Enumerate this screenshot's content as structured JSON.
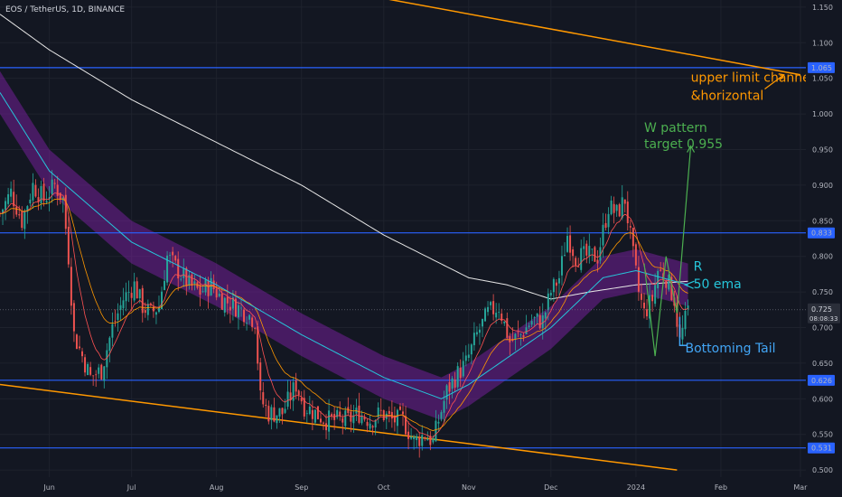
{
  "chart_data": {
    "type": "candlestick",
    "title": "EOS / TetherUS, 1D, BINANCE",
    "ylim": [
      0.49,
      1.16
    ],
    "y_ticks": [
      0.5,
      0.55,
      0.6,
      0.65,
      0.7,
      0.75,
      0.8,
      0.85,
      0.9,
      0.95,
      1.0,
      1.05,
      1.1,
      1.15
    ],
    "y_tick_labels": [
      "0.500",
      "0.550",
      "0.600",
      "0.650",
      "0.700",
      "0.750",
      "0.800",
      "0.850",
      "0.900",
      "0.950",
      "1.000",
      "1.050",
      "1.100",
      "1.150"
    ],
    "x_range": [
      "2023-05-14",
      "2024-03-03"
    ],
    "x_ticks": [
      {
        "date": "2023-06-01",
        "label": "Jun"
      },
      {
        "date": "2023-07-01",
        "label": "Jul"
      },
      {
        "date": "2023-08-01",
        "label": "Aug"
      },
      {
        "date": "2023-09-01",
        "label": "Sep"
      },
      {
        "date": "2023-10-01",
        "label": "Oct"
      },
      {
        "date": "2023-11-01",
        "label": "Nov"
      },
      {
        "date": "2023-12-01",
        "label": "Dec"
      },
      {
        "date": "2024-01-01",
        "label": "2024"
      },
      {
        "date": "2024-02-01",
        "label": "Feb"
      },
      {
        "date": "2024-03-01",
        "label": "Mar"
      }
    ],
    "close_anchors": [
      [
        "2023-05-14",
        0.86
      ],
      [
        "2023-05-18",
        0.89
      ],
      [
        "2023-05-22",
        0.85
      ],
      [
        "2023-05-26",
        0.9
      ],
      [
        "2023-05-30",
        0.88
      ],
      [
        "2023-06-03",
        0.9
      ],
      [
        "2023-06-06",
        0.88
      ],
      [
        "2023-06-08",
        0.8
      ],
      [
        "2023-06-10",
        0.69
      ],
      [
        "2023-06-13",
        0.66
      ],
      [
        "2023-06-16",
        0.63
      ],
      [
        "2023-06-20",
        0.64
      ],
      [
        "2023-06-24",
        0.7
      ],
      [
        "2023-06-28",
        0.74
      ],
      [
        "2023-07-02",
        0.76
      ],
      [
        "2023-07-05",
        0.73
      ],
      [
        "2023-07-08",
        0.72
      ],
      [
        "2023-07-11",
        0.73
      ],
      [
        "2023-07-14",
        0.8
      ],
      [
        "2023-07-18",
        0.78
      ],
      [
        "2023-07-22",
        0.76
      ],
      [
        "2023-07-26",
        0.75
      ],
      [
        "2023-07-30",
        0.76
      ],
      [
        "2023-08-03",
        0.74
      ],
      [
        "2023-08-08",
        0.73
      ],
      [
        "2023-08-12",
        0.72
      ],
      [
        "2023-08-15",
        0.71
      ],
      [
        "2023-08-17",
        0.6
      ],
      [
        "2023-08-20",
        0.58
      ],
      [
        "2023-08-25",
        0.58
      ],
      [
        "2023-08-30",
        0.62
      ],
      [
        "2023-09-02",
        0.59
      ],
      [
        "2023-09-06",
        0.58
      ],
      [
        "2023-09-10",
        0.57
      ],
      [
        "2023-09-14",
        0.57
      ],
      [
        "2023-09-18",
        0.57
      ],
      [
        "2023-09-22",
        0.58
      ],
      [
        "2023-09-26",
        0.57
      ],
      [
        "2023-09-30",
        0.58
      ],
      [
        "2023-10-04",
        0.57
      ],
      [
        "2023-10-08",
        0.57
      ],
      [
        "2023-10-12",
        0.54
      ],
      [
        "2023-10-16",
        0.55
      ],
      [
        "2023-10-19",
        0.54
      ],
      [
        "2023-10-21",
        0.57
      ],
      [
        "2023-10-24",
        0.61
      ],
      [
        "2023-10-27",
        0.63
      ],
      [
        "2023-10-31",
        0.65
      ],
      [
        "2023-11-04",
        0.69
      ],
      [
        "2023-11-08",
        0.72
      ],
      [
        "2023-11-12",
        0.73
      ],
      [
        "2023-11-16",
        0.68
      ],
      [
        "2023-11-20",
        0.69
      ],
      [
        "2023-11-24",
        0.71
      ],
      [
        "2023-11-28",
        0.71
      ],
      [
        "2023-12-01",
        0.75
      ],
      [
        "2023-12-04",
        0.77
      ],
      [
        "2023-12-07",
        0.83
      ],
      [
        "2023-12-10",
        0.8
      ],
      [
        "2023-12-14",
        0.8
      ],
      [
        "2023-12-18",
        0.8
      ],
      [
        "2023-12-22",
        0.87
      ],
      [
        "2023-12-25",
        0.86
      ],
      [
        "2023-12-28",
        0.88
      ],
      [
        "2023-12-31",
        0.8
      ],
      [
        "2024-01-02",
        0.75
      ],
      [
        "2024-01-04",
        0.72
      ],
      [
        "2024-01-07",
        0.74
      ],
      [
        "2024-01-09",
        0.78
      ],
      [
        "2024-01-12",
        0.77
      ],
      [
        "2024-01-15",
        0.74
      ],
      [
        "2024-01-17",
        0.68
      ],
      [
        "2024-01-20",
        0.725
      ]
    ],
    "ema200_anchors": [
      [
        "2023-05-14",
        1.14
      ],
      [
        "2023-06-01",
        1.09
      ],
      [
        "2023-07-01",
        1.02
      ],
      [
        "2023-08-01",
        0.96
      ],
      [
        "2023-09-01",
        0.9
      ],
      [
        "2023-10-01",
        0.83
      ],
      [
        "2023-11-01",
        0.77
      ],
      [
        "2023-11-15",
        0.76
      ],
      [
        "2023-12-01",
        0.74
      ],
      [
        "2023-12-15",
        0.75
      ],
      [
        "2024-01-01",
        0.76
      ],
      [
        "2024-01-20",
        0.765
      ]
    ],
    "ema50_anchors": [
      [
        "2023-05-14",
        1.03
      ],
      [
        "2023-06-01",
        0.92
      ],
      [
        "2023-07-01",
        0.82
      ],
      [
        "2023-08-01",
        0.76
      ],
      [
        "2023-09-01",
        0.69
      ],
      [
        "2023-10-01",
        0.63
      ],
      [
        "2023-10-22",
        0.6
      ],
      [
        "2023-11-01",
        0.62
      ],
      [
        "2023-12-01",
        0.7
      ],
      [
        "2023-12-20",
        0.77
      ],
      [
        "2024-01-01",
        0.78
      ],
      [
        "2024-01-20",
        0.76
      ]
    ],
    "horizontal_levels": [
      {
        "price": 1.065,
        "label": "1.065"
      },
      {
        "price": 0.833,
        "label": "0.833"
      },
      {
        "price": 0.626,
        "label": "0.626"
      },
      {
        "price": 0.531,
        "label": "0.531"
      }
    ],
    "last_price": {
      "value": 0.725,
      "label": "0.725",
      "countdown": "08:08:33"
    },
    "upper_channel": {
      "from": [
        "2023-09-20",
        1.17
      ],
      "to": [
        "2024-03-01",
        1.055
      ]
    },
    "lower_channel": {
      "from": [
        "2023-05-14",
        0.62
      ],
      "to": [
        "2024-01-16",
        0.5
      ]
    },
    "w_pattern": {
      "points": [
        [
          "2024-01-04",
          0.79
        ],
        [
          "2024-01-08",
          0.66
        ],
        [
          "2024-01-12",
          0.8
        ],
        [
          "2024-01-16",
          0.72
        ],
        [
          "2024-01-21",
          0.955
        ]
      ],
      "target": 0.955
    },
    "annotations": [
      {
        "text": "upper limit channel",
        "color": "#ff9800",
        "at": [
          "2024-01-21",
          1.045
        ]
      },
      {
        "text": "&horizontal",
        "color": "#ff9800",
        "at": [
          "2024-01-21",
          1.02
        ]
      },
      {
        "text": "W pattern",
        "color": "#4caf50",
        "at": [
          "2024-01-04",
          0.975
        ]
      },
      {
        "text": "target 0.955",
        "color": "#4caf50",
        "at": [
          "2024-01-04",
          0.952
        ]
      },
      {
        "text": "R",
        "color": "#26c6da",
        "at": [
          "2024-01-22",
          0.78
        ]
      },
      {
        "text": "50 ema",
        "color": "#26c6da",
        "at": [
          "2024-01-22",
          0.755
        ]
      },
      {
        "text": "Bottoming Tail",
        "color": "#42a5f5",
        "at": [
          "2024-01-19",
          0.665
        ]
      }
    ],
    "colors": {
      "background": "#131722",
      "up": "#26a69a",
      "down": "#ef5350",
      "ema200": "#e6e6e6",
      "ema50": "#26c6da",
      "band": "#7b1fa2",
      "horizontal": "#2962ff",
      "channel": "#ff9800",
      "w_pattern": "#4caf50"
    }
  }
}
